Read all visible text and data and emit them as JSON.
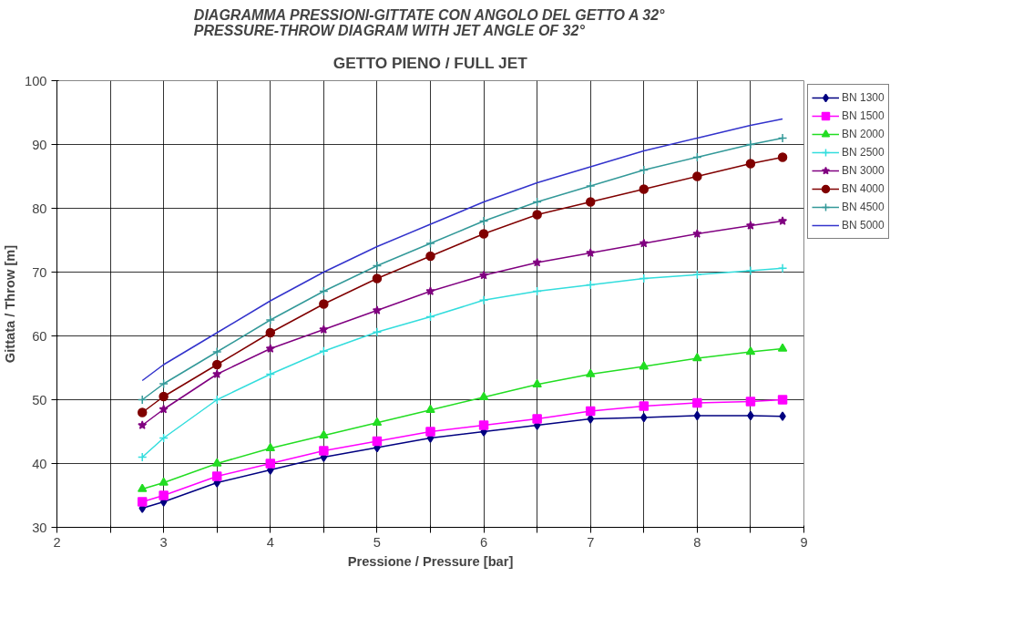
{
  "chart_data": {
    "type": "line",
    "title": "DIAGRAMMA PRESSIONI-GITTATE CON ANGOLO DEL GETTO A 32°\nPRESSURE-THROW DIAGRAM WITH JET ANGLE OF 32°",
    "subtitle": "GETTO PIENO / FULL JET",
    "xlabel": "Pressione / Pressure [bar]",
    "ylabel": "Gittata / Throw [m]",
    "x": [
      2.8,
      3,
      3.5,
      4,
      4.5,
      5,
      5.5,
      6,
      6.5,
      7,
      7.5,
      8,
      8.5,
      8.8
    ],
    "series": [
      {
        "name": "BN 1300",
        "color": "#000080",
        "marker": "diamond",
        "values": [
          33,
          34,
          37,
          39,
          41,
          42.5,
          44,
          45,
          46,
          47,
          47.2,
          47.5,
          47.5,
          47.4
        ]
      },
      {
        "name": "BN 1500",
        "color": "#ff00ff",
        "marker": "square",
        "values": [
          34,
          35,
          38,
          40,
          42,
          43.5,
          45,
          46,
          47,
          48.2,
          49,
          49.5,
          49.7,
          50
        ]
      },
      {
        "name": "BN 2000",
        "color": "#22dd22",
        "marker": "triangle",
        "values": [
          36,
          37,
          40,
          42.4,
          44.4,
          46.4,
          48.4,
          50.4,
          52.4,
          54,
          55.2,
          56.5,
          57.5,
          58
        ]
      },
      {
        "name": "BN 2500",
        "color": "#33dddd",
        "marker": "cross",
        "values": [
          41,
          44,
          50,
          54,
          57.6,
          60.6,
          63,
          65.6,
          67,
          68,
          69,
          69.6,
          70.2,
          70.6
        ]
      },
      {
        "name": "BN 3000",
        "color": "#800080",
        "marker": "star",
        "values": [
          46,
          48.5,
          54,
          58,
          61,
          64,
          67,
          69.5,
          71.5,
          73,
          74.5,
          76,
          77.3,
          78
        ]
      },
      {
        "name": "BN 4000",
        "color": "#800000",
        "marker": "circle",
        "values": [
          48,
          50.5,
          55.5,
          60.5,
          65,
          69,
          72.5,
          76,
          79,
          81,
          83,
          85,
          87,
          88
        ]
      },
      {
        "name": "BN 4500",
        "color": "#339999",
        "marker": "cross",
        "values": [
          50,
          52.5,
          57.5,
          62.5,
          67,
          71,
          74.5,
          78,
          81,
          83.5,
          86,
          88,
          90,
          91
        ]
      },
      {
        "name": "BN 5000",
        "color": "#3333cc",
        "marker": "none",
        "values": [
          53,
          55.5,
          60.5,
          65.5,
          70,
          74,
          77.5,
          81,
          84,
          86.5,
          89,
          91,
          93,
          94
        ]
      }
    ],
    "xlim": [
      2,
      9
    ],
    "ylim": [
      30,
      100
    ],
    "xticks": [
      2,
      {
        "value": 2.5,
        "label": null
      },
      3,
      {
        "value": 3.5,
        "label": null
      },
      4,
      {
        "value": 4.5,
        "label": null
      },
      5,
      {
        "value": 5.5,
        "label": null
      },
      6,
      {
        "value": 6.5,
        "label": null
      },
      7,
      {
        "value": 7.5,
        "label": null
      },
      8,
      {
        "value": 8.5,
        "label": null
      },
      9
    ],
    "yticks": [
      30,
      40,
      50,
      60,
      70,
      80,
      90,
      100
    ],
    "grid": true,
    "legend": "right"
  }
}
